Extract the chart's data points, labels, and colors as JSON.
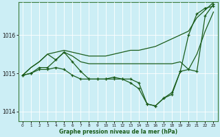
{
  "background_color": "#cceef5",
  "grid_color": "#ffffff",
  "line_color": "#1a5c1a",
  "xlabel": "Graphe pression niveau de la mer (hPa)",
  "ylim": [
    1013.75,
    1016.85
  ],
  "yticks": [
    1014,
    1015,
    1016
  ],
  "xlim": [
    -0.5,
    23.5
  ],
  "xticks": [
    0,
    1,
    2,
    3,
    4,
    5,
    6,
    7,
    8,
    9,
    10,
    11,
    12,
    13,
    14,
    15,
    16,
    17,
    18,
    19,
    20,
    21,
    22,
    23
  ],
  "series": {
    "line_top": [
      1014.95,
      1015.15,
      1015.3,
      1015.5,
      1015.55,
      1015.6,
      1015.55,
      1015.5,
      1015.45,
      1015.45,
      1015.45,
      1015.5,
      1015.55,
      1015.6,
      1015.6,
      1015.65,
      1015.7,
      1015.8,
      1015.9,
      1016.0,
      1016.1,
      1016.45,
      1016.65,
      1016.85
    ],
    "line_mid": [
      1014.95,
      1015.15,
      1015.3,
      1015.5,
      1015.35,
      1015.55,
      1015.45,
      1015.3,
      1015.25,
      1015.25,
      1015.25,
      1015.25,
      1015.25,
      1015.25,
      1015.25,
      1015.25,
      1015.25,
      1015.25,
      1015.25,
      1015.3,
      1015.1,
      1015.5,
      1016.1,
      1016.6
    ],
    "line_zigzag": [
      1014.95,
      1015.0,
      1015.15,
      1015.15,
      1015.35,
      1015.55,
      1015.3,
      1015.05,
      1014.85,
      1014.85,
      1014.85,
      1014.9,
      1014.85,
      1014.75,
      1014.6,
      1014.2,
      1014.15,
      1014.35,
      1014.5,
      1015.05,
      1015.1,
      1015.05,
      1016.5,
      1016.8
    ],
    "line_down": [
      1014.95,
      1015.0,
      1015.1,
      1015.1,
      1015.15,
      1015.1,
      1014.95,
      1014.85,
      1014.85,
      1014.85,
      1014.85,
      1014.85,
      1014.85,
      1014.85,
      1014.75,
      1014.2,
      1014.15,
      1014.35,
      1014.45,
      1015.05,
      1016.0,
      1016.55,
      1016.7,
      1016.75
    ]
  }
}
